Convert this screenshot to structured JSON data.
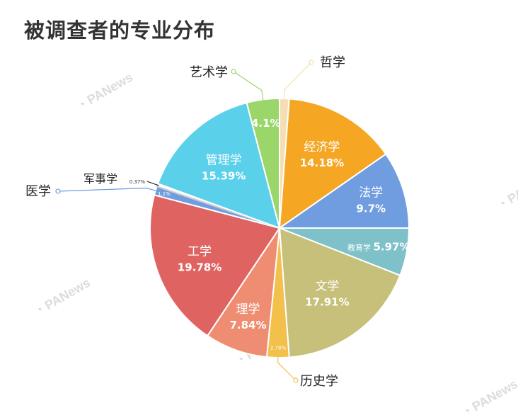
{
  "title": "被调查者的专业分布",
  "watermark": "PANews",
  "chart_data": {
    "type": "pie",
    "title": "被调查者的专业分布",
    "slices": [
      {
        "label": "哲学",
        "value": 1.2,
        "value_label": "",
        "color": "#f5deb3"
      },
      {
        "label": "经济学",
        "value": 14.18,
        "value_label": "14.18%",
        "color": "#f5a623"
      },
      {
        "label": "法学",
        "value": 9.7,
        "value_label": "9.7%",
        "color": "#6f9de0"
      },
      {
        "label": "教育学",
        "value": 5.97,
        "value_label": "5.97%",
        "color": "#7fc1c9"
      },
      {
        "label": "文学",
        "value": 17.91,
        "value_label": "17.91%",
        "color": "#c6c07a"
      },
      {
        "label": "历史学",
        "value": 2.78,
        "value_label": "2.78%",
        "color": "#f2c04b"
      },
      {
        "label": "理学",
        "value": 7.84,
        "value_label": "7.84%",
        "color": "#ef8d72"
      },
      {
        "label": "工学",
        "value": 19.78,
        "value_label": "19.78%",
        "color": "#df6360"
      },
      {
        "label": "医学",
        "value": 1.1,
        "value_label": "1.1%",
        "color": "#6f9de0"
      },
      {
        "label": "军事学",
        "value": 0.37,
        "value_label": "0.37%",
        "color": "#ffffff"
      },
      {
        "label": "管理学",
        "value": 15.39,
        "value_label": "15.39%",
        "color": "#5bd0ea"
      },
      {
        "label": "艺术学",
        "value": 4.1,
        "value_label": "4.1%",
        "color": "#9bd66a"
      }
    ]
  }
}
